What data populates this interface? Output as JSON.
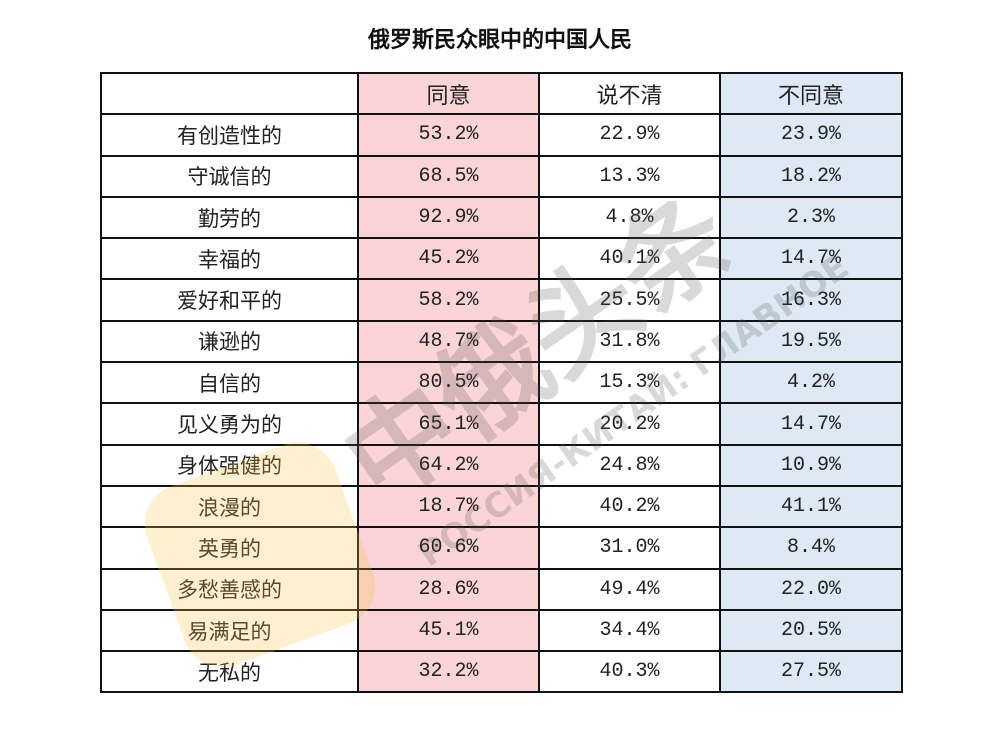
{
  "header": {
    "title": "俄罗斯民众眼中的中国人民"
  },
  "table": {
    "columns": [
      "同意",
      "说不清",
      "不同意"
    ],
    "rows": [
      [
        "有创造性的",
        "53.2%",
        "22.9%",
        "23.9%"
      ],
      [
        "守诚信的",
        "68.5%",
        "13.3%",
        "18.2%"
      ],
      [
        "勤劳的",
        "92.9%",
        "4.8%",
        "2.3%"
      ],
      [
        "幸福的",
        "45.2%",
        "40.1%",
        "14.7%"
      ],
      [
        "爱好和平的",
        "58.2%",
        "25.5%",
        "16.3%"
      ],
      [
        "谦逊的",
        "48.7%",
        "31.8%",
        "19.5%"
      ],
      [
        "自信的",
        "80.5%",
        "15.3%",
        "4.2%"
      ],
      [
        "见义勇为的",
        "65.1%",
        "20.2%",
        "14.7%"
      ],
      [
        "身体强健的",
        "64.2%",
        "24.8%",
        "10.9%"
      ],
      [
        "浪漫的",
        "18.7%",
        "40.2%",
        "41.1%"
      ],
      [
        "英勇的",
        "60.6%",
        "31.0%",
        "8.4%"
      ],
      [
        "多愁善感的",
        "28.6%",
        "49.4%",
        "22.0%"
      ],
      [
        "易满足的",
        "45.1%",
        "34.4%",
        "20.5%"
      ],
      [
        "无私的",
        "32.2%",
        "40.3%",
        "27.5%"
      ]
    ]
  },
  "watermark": {
    "title": "中俄头条",
    "subtitle": "РОССИЯ-КИТАЙ: ГЛАВНОЕ"
  }
}
